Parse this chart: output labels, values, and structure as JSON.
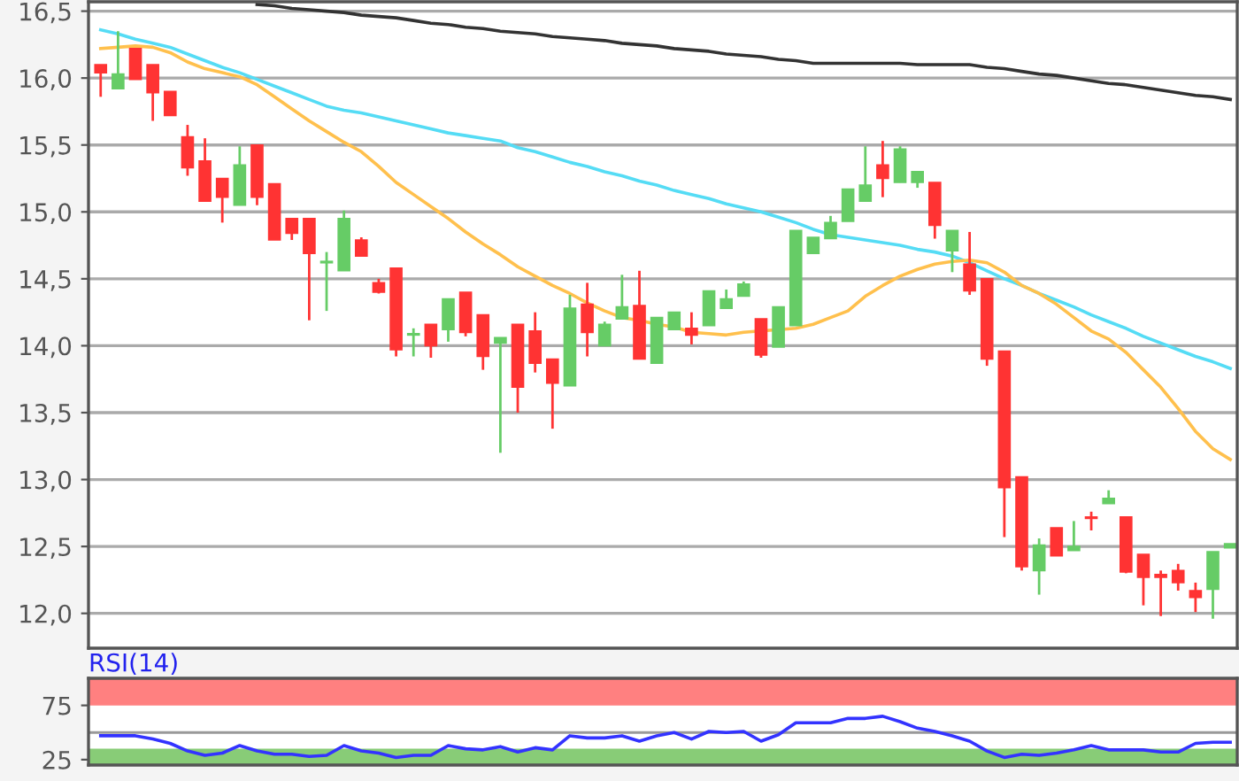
{
  "chart_data": [
    {
      "type": "candlestick",
      "categories": [
        null,
        null,
        null,
        null,
        null,
        null,
        null,
        null,
        null,
        null,
        null,
        null,
        null,
        null,
        null,
        null,
        null,
        null,
        null,
        null,
        null,
        null,
        null,
        null,
        null,
        null,
        null,
        null,
        null,
        null,
        null,
        null,
        null,
        null,
        null,
        null,
        null,
        null,
        null,
        null,
        null,
        null,
        null,
        null,
        null,
        null,
        null,
        null,
        null,
        null,
        null,
        null,
        null,
        null,
        null,
        null,
        null,
        null,
        null,
        null,
        null,
        null,
        null,
        null,
        null,
        null
      ],
      "ohlc": [
        [
          16.1,
          16.1,
          15.86,
          16.04
        ],
        [
          15.92,
          16.35,
          15.92,
          16.03
        ],
        [
          16.22,
          16.22,
          15.99,
          15.99
        ],
        [
          16.1,
          16.1,
          15.68,
          15.89
        ],
        [
          15.9,
          15.9,
          15.72,
          15.72
        ],
        [
          15.56,
          15.65,
          15.27,
          15.33
        ],
        [
          15.38,
          15.55,
          15.08,
          15.08
        ],
        [
          15.25,
          15.25,
          14.92,
          15.11
        ],
        [
          15.05,
          15.49,
          15.05,
          15.35
        ],
        [
          15.5,
          15.5,
          15.05,
          15.11
        ],
        [
          15.21,
          15.21,
          14.79,
          14.79
        ],
        [
          14.95,
          14.95,
          14.79,
          14.84
        ],
        [
          14.95,
          14.95,
          14.19,
          14.69
        ],
        [
          14.62,
          14.7,
          14.26,
          14.63
        ],
        [
          14.56,
          15.01,
          14.56,
          14.95
        ],
        [
          14.79,
          14.81,
          14.67,
          14.67
        ],
        [
          14.47,
          14.5,
          14.39,
          14.4
        ],
        [
          14.58,
          14.58,
          13.92,
          13.97
        ],
        [
          14.08,
          14.13,
          13.92,
          14.09
        ],
        [
          14.16,
          14.16,
          13.91,
          14.0
        ],
        [
          14.12,
          14.35,
          14.03,
          14.35
        ],
        [
          14.4,
          14.4,
          14.07,
          14.1
        ],
        [
          14.23,
          14.23,
          13.82,
          13.92
        ],
        [
          14.02,
          14.06,
          13.2,
          14.06
        ],
        [
          14.16,
          14.16,
          13.5,
          13.69
        ],
        [
          14.11,
          14.25,
          13.8,
          13.87
        ],
        [
          13.9,
          13.9,
          13.38,
          13.72
        ],
        [
          13.7,
          14.38,
          13.7,
          14.28
        ],
        [
          14.31,
          14.47,
          13.92,
          14.1
        ],
        [
          14.0,
          14.18,
          14.0,
          14.16
        ],
        [
          14.2,
          14.53,
          14.2,
          14.29
        ],
        [
          14.3,
          14.56,
          13.9,
          13.9
        ],
        [
          13.87,
          14.21,
          13.87,
          14.21
        ],
        [
          14.12,
          14.25,
          14.12,
          14.25
        ],
        [
          14.13,
          14.25,
          14.01,
          14.08
        ],
        [
          14.15,
          14.41,
          14.15,
          14.41
        ],
        [
          14.28,
          14.42,
          14.28,
          14.35
        ],
        [
          14.37,
          14.48,
          14.37,
          14.46
        ],
        [
          14.2,
          14.2,
          13.91,
          13.93
        ],
        [
          13.99,
          14.29,
          13.99,
          14.29
        ],
        [
          14.15,
          14.86,
          14.15,
          14.86
        ],
        [
          14.69,
          14.81,
          14.69,
          14.81
        ],
        [
          14.8,
          14.97,
          14.8,
          14.92
        ],
        [
          14.93,
          15.17,
          14.93,
          15.17
        ],
        [
          15.08,
          15.49,
          15.08,
          15.2
        ],
        [
          15.35,
          15.53,
          15.11,
          15.25
        ],
        [
          15.22,
          15.49,
          15.22,
          15.47
        ],
        [
          15.22,
          15.3,
          15.18,
          15.3
        ],
        [
          15.22,
          15.22,
          14.8,
          14.9
        ],
        [
          14.71,
          14.86,
          14.55,
          14.86
        ],
        [
          14.61,
          14.85,
          14.38,
          14.41
        ],
        [
          14.5,
          14.5,
          13.85,
          13.9
        ],
        [
          13.96,
          13.96,
          12.57,
          12.94
        ],
        [
          13.02,
          13.02,
          12.32,
          12.35
        ],
        [
          12.32,
          12.56,
          12.14,
          12.51
        ],
        [
          12.64,
          12.64,
          12.43,
          12.43
        ],
        [
          12.47,
          12.69,
          12.47,
          12.5
        ],
        [
          12.72,
          12.76,
          12.62,
          12.71
        ],
        [
          12.82,
          12.92,
          12.82,
          12.86
        ],
        [
          12.72,
          12.72,
          12.3,
          12.31
        ],
        [
          12.44,
          12.44,
          12.06,
          12.27
        ],
        [
          12.29,
          12.32,
          11.98,
          12.27
        ],
        [
          12.32,
          12.37,
          12.17,
          12.23
        ],
        [
          12.17,
          12.23,
          12.01,
          12.12
        ],
        [
          12.18,
          12.46,
          11.96,
          12.46
        ],
        [
          12.49,
          12.52,
          12.49,
          12.52
        ]
      ],
      "colors": [
        "#ff3333",
        "#66cc66",
        "#ff3333",
        "#ff3333",
        "#ff3333",
        "#ff3333",
        "#ff3333",
        "#ff3333",
        "#66cc66",
        "#ff3333",
        "#ff3333",
        "#ff3333",
        "#ff3333",
        "#66cc66",
        "#66cc66",
        "#ff3333",
        "#ff3333",
        "#ff3333",
        "#66cc66",
        "#ff3333",
        "#66cc66",
        "#ff3333",
        "#ff3333",
        "#66cc66",
        "#ff3333",
        "#ff3333",
        "#ff3333",
        "#66cc66",
        "#ff3333",
        "#66cc66",
        "#66cc66",
        "#ff3333",
        "#66cc66",
        "#66cc66",
        "#ff3333",
        "#66cc66",
        "#66cc66",
        "#66cc66",
        "#ff3333",
        "#66cc66",
        "#66cc66",
        "#66cc66",
        "#66cc66",
        "#66cc66",
        "#66cc66",
        "#ff3333",
        "#66cc66",
        "#66cc66",
        "#ff3333",
        "#66cc66",
        "#ff3333",
        "#ff3333",
        "#ff3333",
        "#ff3333",
        "#66cc66",
        "#ff3333",
        "#66cc66",
        "#ff3333",
        "#66cc66",
        "#ff3333",
        "#ff3333",
        "#ff3333",
        "#ff3333",
        "#ff3333",
        "#66cc66",
        "#66cc66"
      ],
      "series": [
        {
          "type": "line",
          "color": "#333333",
          "values": [
            null,
            null,
            null,
            null,
            null,
            null,
            null,
            null,
            null,
            16.55,
            16.54,
            16.52,
            16.51,
            16.5,
            16.49,
            16.47,
            16.46,
            16.45,
            16.43,
            16.41,
            16.4,
            16.38,
            16.37,
            16.35,
            16.34,
            16.33,
            16.31,
            16.3,
            16.29,
            16.28,
            16.26,
            16.25,
            16.24,
            16.22,
            16.21,
            16.2,
            16.18,
            16.17,
            16.16,
            16.14,
            16.13,
            16.11,
            16.11,
            16.11,
            16.11,
            16.11,
            16.11,
            16.1,
            16.1,
            16.1,
            16.1,
            16.08,
            16.07,
            16.05,
            16.03,
            16.02,
            16.0,
            15.98,
            15.96,
            15.95,
            15.93,
            15.91,
            15.89,
            15.87,
            15.86,
            15.84
          ]
        },
        {
          "type": "line",
          "color": "#55dcf5",
          "values": [
            16.36,
            16.33,
            16.29,
            16.26,
            16.23,
            16.18,
            16.13,
            16.08,
            16.04,
            15.99,
            15.94,
            15.89,
            15.84,
            15.79,
            15.76,
            15.74,
            15.71,
            15.68,
            15.65,
            15.62,
            15.59,
            15.57,
            15.55,
            15.53,
            15.48,
            15.45,
            15.41,
            15.37,
            15.34,
            15.3,
            15.27,
            15.23,
            15.2,
            15.16,
            15.13,
            15.1,
            15.06,
            15.03,
            15.0,
            14.96,
            14.92,
            14.87,
            14.83,
            14.81,
            14.79,
            14.77,
            14.75,
            14.72,
            14.7,
            14.67,
            14.62,
            14.56,
            14.5,
            14.45,
            14.39,
            14.34,
            14.29,
            14.23,
            14.18,
            14.13,
            14.07,
            14.02,
            13.97,
            13.92,
            13.88,
            13.83
          ]
        },
        {
          "type": "line",
          "color": "#ffc04d",
          "values": [
            16.22,
            16.23,
            16.24,
            16.23,
            16.19,
            16.12,
            16.07,
            16.04,
            16.01,
            15.95,
            15.86,
            15.77,
            15.68,
            15.6,
            15.52,
            15.45,
            15.34,
            15.22,
            15.13,
            15.04,
            14.95,
            14.85,
            14.76,
            14.68,
            14.59,
            14.52,
            14.45,
            14.39,
            14.32,
            14.26,
            14.21,
            14.19,
            14.16,
            14.14,
            14.1,
            14.09,
            14.08,
            14.1,
            14.11,
            14.12,
            14.13,
            14.16,
            14.21,
            14.26,
            14.37,
            14.45,
            14.52,
            14.57,
            14.61,
            14.63,
            14.64,
            14.62,
            14.55,
            14.45,
            14.39,
            14.31,
            14.21,
            14.11,
            14.05,
            13.95,
            13.82,
            13.69,
            13.53,
            13.36,
            13.23,
            13.15
          ]
        }
      ],
      "ylim": [
        11.74,
        16.57
      ],
      "yticks": [
        {
          "value": 12.0,
          "label": "12,0"
        },
        {
          "value": 12.5,
          "label": "12,5"
        },
        {
          "value": 13.0,
          "label": "13,0"
        },
        {
          "value": 13.5,
          "label": "13,5"
        },
        {
          "value": 14.0,
          "label": "14,0"
        },
        {
          "value": 14.5,
          "label": "14,5"
        },
        {
          "value": 15.0,
          "label": "15,0"
        },
        {
          "value": 15.5,
          "label": "15,5"
        },
        {
          "value": 16.0,
          "label": "16,0"
        },
        {
          "value": 16.5,
          "label": "16,5"
        }
      ],
      "grid": "y",
      "tick_labels": "y"
    },
    {
      "type": "line",
      "title": "RSI(14)",
      "categories": [
        null,
        null,
        null,
        null,
        null,
        null,
        null,
        null,
        null,
        null,
        null,
        null,
        null,
        null,
        null,
        null,
        null,
        null,
        null,
        null,
        null,
        null,
        null,
        null,
        null,
        null,
        null,
        null,
        null,
        null,
        null,
        null,
        null,
        null,
        null,
        null,
        null,
        null,
        null,
        null,
        null,
        null,
        null,
        null,
        null,
        null,
        null,
        null,
        null,
        null,
        null,
        null,
        null,
        null,
        null,
        null,
        null,
        null,
        null,
        null,
        null,
        null,
        null,
        null,
        null,
        null
      ],
      "series": [
        {
          "color": "#3333ff",
          "values": [
            47,
            47,
            47,
            44,
            40,
            33,
            29,
            31,
            38,
            33,
            30,
            30,
            28,
            29,
            38,
            33,
            31,
            27,
            29,
            29,
            38,
            35,
            34,
            37,
            32,
            36,
            34,
            47,
            45,
            45,
            47,
            42,
            47,
            50,
            44,
            51,
            50,
            51,
            42,
            48,
            59,
            59,
            59,
            63,
            63,
            65,
            60,
            54,
            51,
            47,
            42,
            33,
            27,
            30,
            29,
            31,
            34,
            38,
            34,
            34,
            34,
            32,
            32,
            40,
            41,
            41
          ]
        }
      ],
      "ylim": [
        20,
        100
      ],
      "yticks": [
        25,
        75
      ],
      "bands": [
        {
          "axis": "y",
          "from": 75,
          "to": 100,
          "color": "#ff8080"
        },
        {
          "axis": "y",
          "from": 20,
          "to": 35,
          "color": "#88cc77"
        }
      ],
      "ref_lines": [
        {
          "axis": "y",
          "value": 50,
          "color": "#999999"
        }
      ],
      "tick_labels": "y"
    }
  ]
}
